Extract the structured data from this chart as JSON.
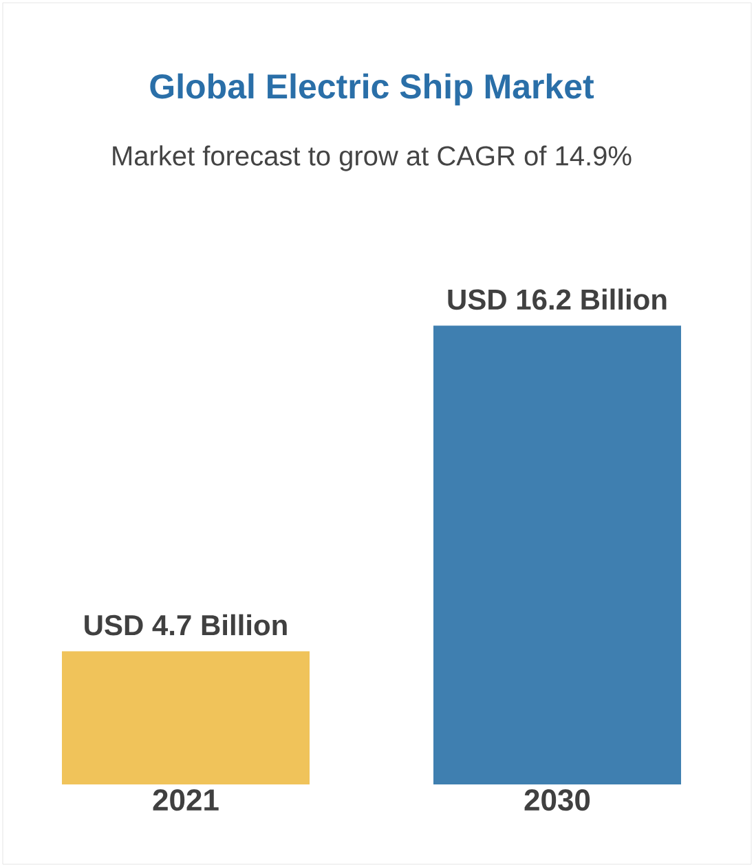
{
  "chart_data": {
    "type": "bar",
    "title": "Global Electric Ship Market",
    "subtitle": "Market forecast to grow at CAGR of 14.9%",
    "categories": [
      "2021",
      "2030"
    ],
    "values": [
      4.7,
      16.2
    ],
    "colors": [
      "#f0c35a",
      "#3f7fb0"
    ],
    "value_labels": [
      "USD 4.7 Billion",
      "USD 16.2 Billion"
    ]
  }
}
